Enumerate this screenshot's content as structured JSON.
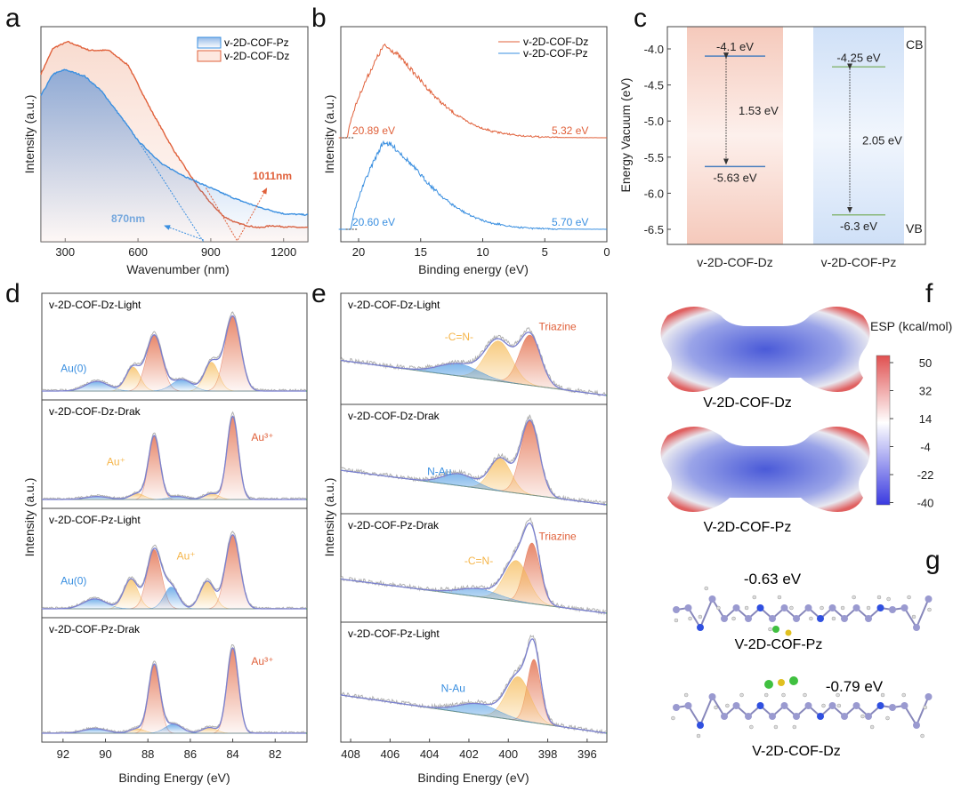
{
  "colors": {
    "red": "#e0603a",
    "blue": "#3a8fe0",
    "orange": "#f5b54a",
    "purple": "#7b80d0",
    "gray": "#b0b0b0",
    "green": "#8ab87a"
  },
  "panel_labels": [
    "a",
    "b",
    "c",
    "d",
    "e",
    "f",
    "g"
  ],
  "chart_data": [
    {
      "id": "a",
      "type": "area",
      "xlabel": "Wavenumber (nm)",
      "ylabel": "Intensity (a.u.)",
      "xlim": [
        200,
        1300
      ],
      "xticks": [
        300,
        600,
        900,
        1200
      ],
      "legend": [
        "v-2D-COF-Pz",
        "v-2D-COF-Dz"
      ],
      "legend_position": "top-right",
      "series": [
        {
          "name": "v-2D-COF-Dz",
          "color": "#e0603a",
          "x": [
            200,
            250,
            310,
            400,
            480,
            560,
            650,
            750,
            850,
            900,
            950,
            1000,
            1050,
            1100,
            1150,
            1200,
            1300
          ],
          "y": [
            0.78,
            0.9,
            0.93,
            0.89,
            0.89,
            0.82,
            0.62,
            0.42,
            0.25,
            0.18,
            0.12,
            0.09,
            0.075,
            0.065,
            0.075,
            0.07,
            0.065
          ]
        },
        {
          "name": "v-2D-COF-Pz",
          "color": "#3a8fe0",
          "x": [
            200,
            250,
            300,
            380,
            450,
            550,
            600,
            700,
            800,
            900,
            1000,
            1100,
            1200,
            1300
          ],
          "y": [
            0.68,
            0.78,
            0.8,
            0.77,
            0.7,
            0.55,
            0.47,
            0.36,
            0.3,
            0.25,
            0.2,
            0.16,
            0.13,
            0.125
          ]
        }
      ],
      "annotations": [
        {
          "text": "870nm",
          "x": 870
        },
        {
          "text": "1011nm",
          "x": 1011
        }
      ]
    },
    {
      "id": "b",
      "type": "line",
      "xlabel": "Binding energy (eV)",
      "ylabel": "Intensity (a.u.)",
      "xlim": [
        22,
        0
      ],
      "xticks": [
        20,
        15,
        10,
        5,
        0
      ],
      "legend": [
        "v-2D-COF-Dz",
        "v-2D-COF-Pz"
      ],
      "legend_position": "top-right",
      "series": [
        {
          "name": "v-2D-COF-Dz",
          "onset": 20.89,
          "cutoff": "5.32 eV",
          "onset_label": "20.89 eV",
          "peak": 18
        },
        {
          "name": "v-2D-COF-Pz",
          "onset": 20.6,
          "cutoff": "5.70 eV",
          "onset_label": "20.60 eV",
          "peak": 18
        }
      ]
    },
    {
      "id": "c",
      "type": "bar",
      "ylabel": "Energy Vacuum (eV)",
      "ylim": [
        -6.7,
        -3.7
      ],
      "yticks": [
        "-4.0",
        "-4.5",
        "-5.0",
        "-5.5",
        "-6.0",
        "-6.5"
      ],
      "categories": [
        "v-2D-COF-Dz",
        "v-2D-COF-Pz"
      ],
      "CB": [
        -4.1,
        -4.25
      ],
      "VB": [
        -5.63,
        -6.3
      ],
      "CB_labels": [
        "-4.1 eV",
        "-4.25 eV"
      ],
      "VB_labels": [
        "-5.63 eV",
        "-6.3 eV"
      ],
      "gap_labels": [
        "1.53 eV",
        "2.05 eV"
      ],
      "side_labels": {
        "cb": "CB",
        "vb": "VB"
      }
    },
    {
      "id": "d",
      "type": "line",
      "xlabel": "Binding Energy (eV)",
      "ylabel": "Intensity (a.u.)",
      "xlim": [
        93,
        80.5
      ],
      "xticks": [
        "92",
        "90",
        "88",
        "86",
        "84",
        "82"
      ],
      "subplots": [
        {
          "title": "v-2D-COF-Dz-Light",
          "labels": [
            {
              "t": "Au(0)",
              "x": 91.5,
              "f": 0.2,
              "c": "blue"
            }
          ],
          "peaks": [
            [
              84,
              0.78,
              0.55,
              "red"
            ],
            [
              87.7,
              0.58,
              0.55,
              "red"
            ],
            [
              85,
              0.3,
              0.5,
              "orange"
            ],
            [
              88.7,
              0.25,
              0.5,
              "orange"
            ],
            [
              86.4,
              0.12,
              0.7,
              "blue"
            ],
            [
              90.4,
              0.1,
              0.8,
              "blue"
            ]
          ]
        },
        {
          "title": "v-2D-COF-Dz-Drak",
          "labels": [
            {
              "t": "Au⁺",
              "x": 89.5,
              "f": 0.35,
              "c": "orange"
            },
            {
              "t": "Au³⁺",
              "x": 82.6,
              "f": 0.6,
              "c": "red"
            }
          ],
          "peaks": [
            [
              84,
              0.85,
              0.4,
              "red"
            ],
            [
              87.7,
              0.65,
              0.4,
              "red"
            ],
            [
              85,
              0.06,
              0.5,
              "orange"
            ],
            [
              88.5,
              0.06,
              0.5,
              "orange"
            ],
            [
              86.6,
              0.03,
              0.6,
              "blue"
            ],
            [
              90.4,
              0.03,
              0.8,
              "blue"
            ]
          ]
        },
        {
          "title": "v-2D-COF-Pz-Light",
          "labels": [
            {
              "t": "Au(0)",
              "x": 91.5,
              "f": 0.25,
              "c": "blue"
            },
            {
              "t": "Au⁺",
              "x": 86.2,
              "f": 0.5,
              "c": "orange"
            }
          ],
          "peaks": [
            [
              84,
              0.75,
              0.5,
              "red"
            ],
            [
              87.7,
              0.6,
              0.5,
              "red"
            ],
            [
              85.2,
              0.28,
              0.5,
              "orange"
            ],
            [
              88.8,
              0.3,
              0.5,
              "orange"
            ],
            [
              86.9,
              0.22,
              0.5,
              "blue"
            ],
            [
              90.5,
              0.1,
              0.8,
              "blue"
            ]
          ]
        },
        {
          "title": "v-2D-COF-Pz-Drak",
          "labels": [
            {
              "t": "Au³⁺",
              "x": 82.6,
              "f": 0.6,
              "c": "red"
            }
          ],
          "peaks": [
            [
              84,
              0.75,
              0.4,
              "red"
            ],
            [
              87.7,
              0.6,
              0.4,
              "red"
            ],
            [
              85.1,
              0.05,
              0.5,
              "orange"
            ],
            [
              88.5,
              0.04,
              0.5,
              "orange"
            ],
            [
              86.8,
              0.08,
              0.6,
              "blue"
            ],
            [
              90.5,
              0.04,
              0.8,
              "blue"
            ]
          ]
        }
      ]
    },
    {
      "id": "e",
      "type": "line",
      "xlabel": "Binding Energy (eV)",
      "ylabel": "Intensity (a.u.)",
      "xlim": [
        408.5,
        395
      ],
      "xticks": [
        "408",
        "406",
        "404",
        "402",
        "400",
        "398",
        "396"
      ],
      "subplots": [
        {
          "title": "v-2D-COF-Dz-Light",
          "labels": [
            {
              "t": "-C=N-",
              "x": 402.5,
              "f": 0.55,
              "c": "orange"
            },
            {
              "t": "Triazine",
              "x": 397.5,
              "f": 0.65,
              "c": "red"
            }
          ],
          "peaks": [
            [
              398.9,
              0.5,
              0.8,
              "red"
            ],
            [
              400.5,
              0.4,
              1.0,
              "orange"
            ],
            [
              402.5,
              0.12,
              1.5,
              "blue"
            ]
          ]
        },
        {
          "title": "v-2D-COF-Dz-Drak",
          "labels": [
            {
              "t": "N-Au",
              "x": 403.5,
              "f": 0.3,
              "c": "blue"
            }
          ],
          "peaks": [
            [
              398.9,
              0.75,
              0.7,
              "red"
            ],
            [
              400.4,
              0.33,
              0.8,
              "orange"
            ],
            [
              402.5,
              0.12,
              1.2,
              "blue"
            ]
          ]
        },
        {
          "title": "v-2D-COF-Pz-Drak",
          "labels": [
            {
              "t": "Triazine",
              "x": 397.5,
              "f": 0.75,
              "c": "red"
            },
            {
              "t": "-C=N-",
              "x": 401.5,
              "f": 0.5,
              "c": "orange"
            }
          ],
          "peaks": [
            [
              398.8,
              0.62,
              0.6,
              "red"
            ],
            [
              399.6,
              0.42,
              0.9,
              "orange"
            ],
            [
              401.5,
              0.08,
              1.5,
              "blue"
            ]
          ]
        },
        {
          "title": "v-2D-COF-Pz-Light",
          "labels": [
            {
              "t": "N-Au",
              "x": 402.8,
              "f": 0.38,
              "c": "blue"
            }
          ],
          "peaks": [
            [
              398.7,
              0.58,
              0.5,
              "red"
            ],
            [
              399.5,
              0.4,
              0.9,
              "orange"
            ],
            [
              401.5,
              0.1,
              1.5,
              "blue"
            ]
          ]
        }
      ]
    },
    {
      "id": "f",
      "type": "heatmap",
      "colorbar_title": "ESP (kcal/mol)",
      "colorbar_ticks": [
        "50",
        "32",
        "14",
        "-4",
        "-22",
        "-40"
      ],
      "molecules": [
        "V-2D-COF-Dz",
        "V-2D-COF-Pz"
      ]
    },
    {
      "id": "g",
      "type": "diagram",
      "structures": [
        {
          "name": "V-2D-COF-Pz",
          "energy": "-0.63 eV"
        },
        {
          "name": "V-2D-COF-Dz",
          "energy": "-0.79 eV"
        }
      ]
    }
  ]
}
